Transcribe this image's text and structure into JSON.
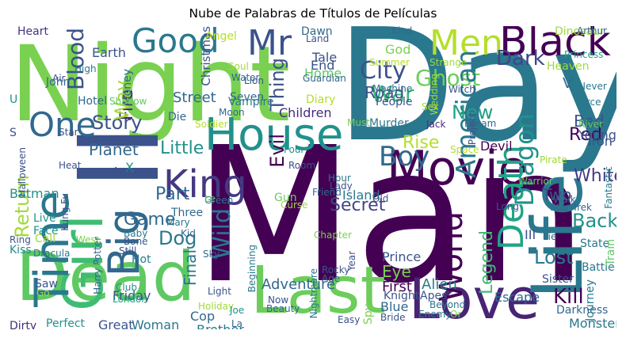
{
  "title": "Nube de Palabras de Títulos de Películas",
  "words": [
    {
      "text": "Man",
      "color": "#440154"
    },
    {
      "text": "Day",
      "color": "#2a788e"
    },
    {
      "text": "Night",
      "color": "#7ad151"
    },
    {
      "text": "II",
      "color": "#3b528b"
    },
    {
      "text": "Dead",
      "color": "#5ec962"
    },
    {
      "text": "Love",
      "color": "#482475"
    },
    {
      "text": "Last",
      "color": "#6ccd5a"
    },
    {
      "text": "Life",
      "color": "#2a788e"
    },
    {
      "text": "Movie",
      "color": "#440154"
    },
    {
      "text": "House",
      "color": "#21918c"
    },
    {
      "text": "Girl",
      "color": "#3fbc73"
    },
    {
      "text": "Black",
      "color": "#440154"
    },
    {
      "text": "Time",
      "color": "#2a788e"
    },
    {
      "text": "King",
      "color": "#443983"
    },
    {
      "text": "Big",
      "color": "#31688e"
    },
    {
      "text": "Good",
      "color": "#2a788e"
    },
    {
      "text": "Men",
      "color": "#b5de2b"
    },
    {
      "text": "Mr",
      "color": "#3b528b"
    },
    {
      "text": "Boy",
      "color": "#31688e"
    },
    {
      "text": "World",
      "color": "#440154"
    },
    {
      "text": "Death",
      "color": "#20a486"
    },
    {
      "text": "One",
      "color": "#31688e"
    },
    {
      "text": "City",
      "color": "#3b528b"
    },
    {
      "text": "Ghost",
      "color": "#6ccd5a"
    },
    {
      "text": "War",
      "color": "#35b779"
    },
    {
      "text": "American",
      "color": "#2a788e"
    },
    {
      "text": "Dragon",
      "color": "#21918c"
    },
    {
      "text": "Dark",
      "color": "#414487"
    },
    {
      "text": "Blood",
      "color": "#3b528b"
    },
    {
      "text": "Earth",
      "color": "#3b528b"
    },
    {
      "text": "Heart",
      "color": "#46327e"
    },
    {
      "text": "Christmas",
      "color": "#3b528b"
    },
    {
      "text": "Story",
      "color": "#3b528b"
    },
    {
      "text": "Little",
      "color": "#21918c"
    },
    {
      "text": "Planet",
      "color": "#31688e"
    },
    {
      "text": "Return",
      "color": "#a0da39"
    },
    {
      "text": "Fire",
      "color": "#481f70"
    },
    {
      "text": "Way",
      "color": "#a0da39"
    },
    {
      "text": "Secret",
      "color": "#414487"
    },
    {
      "text": "Wild",
      "color": "#2a788e"
    },
    {
      "text": "Part",
      "color": "#31688e"
    },
    {
      "text": "Game",
      "color": "#31688e"
    },
    {
      "text": "Dog",
      "color": "#2a788e"
    },
    {
      "text": "Thing",
      "color": "#3b528b"
    },
    {
      "text": "Street",
      "color": "#31688e"
    },
    {
      "text": "Evil",
      "color": "#440154"
    },
    {
      "text": "Kill",
      "color": "#440154"
    },
    {
      "text": "Lost",
      "color": "#2a788e"
    },
    {
      "text": "Back",
      "color": "#21918c"
    },
    {
      "text": "White",
      "color": "#443983"
    },
    {
      "text": "Red",
      "color": "#440154"
    },
    {
      "text": "Bad",
      "color": "#3b528b"
    },
    {
      "text": "New",
      "color": "#1fa187"
    },
    {
      "text": "Rise",
      "color": "#b5de2b"
    },
    {
      "text": "Road",
      "color": "#3b528b"
    },
    {
      "text": "Adventure",
      "color": "#31688e"
    },
    {
      "text": "Legend",
      "color": "#3fbc73"
    },
    {
      "text": "Friday",
      "color": "#3b528b"
    },
    {
      "text": "Final",
      "color": "#2a788e"
    },
    {
      "text": "Children",
      "color": "#472d7b"
    },
    {
      "text": "Murder",
      "color": "#2a788e"
    },
    {
      "text": "Escape",
      "color": "#31688e"
    },
    {
      "text": "Two",
      "color": "#3b528b"
    },
    {
      "text": "Prince",
      "color": "#3b528b"
    },
    {
      "text": "Eye",
      "color": "#7ad151"
    },
    {
      "text": "First",
      "color": "#440154"
    },
    {
      "text": "Alien",
      "color": "#2a788e"
    },
    {
      "text": "Blue",
      "color": "#31688e"
    },
    {
      "text": "Island",
      "color": "#2a788e"
    },
    {
      "text": "Tale",
      "color": "#3b528b"
    },
    {
      "text": "End",
      "color": "#3b528b"
    },
    {
      "text": "Home",
      "color": "#5ec962"
    },
    {
      "text": "God",
      "color": "#7ad151"
    },
    {
      "text": "People",
      "color": "#3b528b"
    },
    {
      "text": "Great",
      "color": "#3b528b"
    },
    {
      "text": "Woman",
      "color": "#2a788e"
    },
    {
      "text": "Cop",
      "color": "#31688e"
    },
    {
      "text": "Brother",
      "color": "#2a788e"
    },
    {
      "text": "Perfect",
      "color": "#21918c"
    },
    {
      "text": "Dirty",
      "color": "#472d7b"
    },
    {
      "text": "Monster",
      "color": "#2a788e"
    },
    {
      "text": "Darkness",
      "color": "#31688e"
    },
    {
      "text": "Journey",
      "color": "#2a788e"
    },
    {
      "text": "Battle",
      "color": "#2a788e"
    },
    {
      "text": "Sister",
      "color": "#3b528b"
    },
    {
      "text": "State",
      "color": "#2a788e"
    },
    {
      "text": "Train",
      "color": "#5ec962"
    },
    {
      "text": "Young",
      "color": "#3b528b"
    },
    {
      "text": "Iron",
      "color": "#3b528b"
    },
    {
      "text": "Force",
      "color": "#2a788e"
    },
    {
      "text": "Batman",
      "color": "#21918c"
    },
    {
      "text": "Live",
      "color": "#21918c"
    },
    {
      "text": "Face",
      "color": "#21918c"
    },
    {
      "text": "Call",
      "color": "#a0da39"
    },
    {
      "text": "Kiss",
      "color": "#21918c"
    },
    {
      "text": "Saw",
      "color": "#3b528b"
    },
    {
      "text": "Fantastic",
      "color": "#2a788e"
    },
    {
      "text": "Star Trek",
      "color": "#31688e"
    },
    {
      "text": "Walk",
      "color": "#31688e"
    },
    {
      "text": "Long",
      "color": "#3b528b"
    },
    {
      "text": "Warrior",
      "color": "#6ccd5a"
    },
    {
      "text": "Devil",
      "color": "#440154"
    },
    {
      "text": "Space",
      "color": "#b5de2b"
    },
    {
      "text": "Four",
      "color": "#21918c"
    },
    {
      "text": "Room",
      "color": "#3b528b"
    },
    {
      "text": "Gun",
      "color": "#6ccd5a"
    },
    {
      "text": "Three",
      "color": "#31688e"
    },
    {
      "text": "Green",
      "color": "#2a788e"
    },
    {
      "text": "Soldier",
      "color": "#b5de2b"
    },
    {
      "text": "Die",
      "color": "#31688e"
    },
    {
      "text": "Sea",
      "color": "#3b528b"
    },
    {
      "text": "Money",
      "color": "#31688e"
    },
    {
      "text": "Angel",
      "color": "#b5de2b"
    },
    {
      "text": "Soul",
      "color": "#a0da39"
    },
    {
      "text": "Water",
      "color": "#31688e"
    },
    {
      "text": "Lion",
      "color": "#3b528b"
    },
    {
      "text": "Seven",
      "color": "#31688e"
    },
    {
      "text": "Vampire",
      "color": "#2a788e"
    },
    {
      "text": "Moon",
      "color": "#31688e"
    },
    {
      "text": "Dawn",
      "color": "#31688e"
    },
    {
      "text": "Land",
      "color": "#3b528b"
    },
    {
      "text": "Kind",
      "color": "#31688e"
    },
    {
      "text": "Summer",
      "color": "#b5de2b"
    },
    {
      "text": "Strange",
      "color": "#a0da39"
    },
    {
      "text": "Machine",
      "color": "#31688e"
    },
    {
      "text": "Wedding",
      "color": "#a0da39"
    },
    {
      "text": "Witch",
      "color": "#3b528b"
    },
    {
      "text": "Guardian",
      "color": "#31688e"
    },
    {
      "text": "Diary",
      "color": "#b5de2b"
    },
    {
      "text": "Sex",
      "color": "#b5de2b"
    },
    {
      "text": "Must",
      "color": "#7ad151"
    },
    {
      "text": "Jack",
      "color": "#472d7b"
    },
    {
      "text": "Dream",
      "color": "#31688e"
    },
    {
      "text": "Project",
      "color": "#3b528b"
    },
    {
      "text": "Dinosaur",
      "color": "#a0da39"
    },
    {
      "text": "Arthur",
      "color": "#31688e"
    },
    {
      "text": "Princess",
      "color": "#1fa187"
    },
    {
      "text": "Heaven",
      "color": "#a0da39"
    },
    {
      "text": "Never",
      "color": "#2a788e"
    },
    {
      "text": "River",
      "color": "#5ec962"
    },
    {
      "text": "Pirate",
      "color": "#a0da39"
    },
    {
      "text": "Lie",
      "color": "#31688e"
    },
    {
      "text": "Air",
      "color": "#3b528b"
    },
    {
      "text": "V",
      "color": "#31688e"
    },
    {
      "text": "S",
      "color": "#3b528b"
    },
    {
      "text": "X",
      "color": "#21918c"
    },
    {
      "text": "U",
      "color": "#21918c"
    },
    {
      "text": "John",
      "color": "#31688e"
    },
    {
      "text": "High",
      "color": "#2a788e"
    },
    {
      "text": "Hotel",
      "color": "#31688e"
    },
    {
      "text": "Shadow",
      "color": "#5ec962"
    },
    {
      "text": "Star",
      "color": "#3b528b"
    },
    {
      "text": "Heat",
      "color": "#3b528b"
    },
    {
      "text": "Halloween",
      "color": "#3b528b"
    },
    {
      "text": "Kung Fu",
      "color": "#3b528b"
    },
    {
      "text": "Avenger",
      "color": "#3b528b"
    },
    {
      "text": "Ring",
      "color": "#3b528b"
    },
    {
      "text": "West",
      "color": "#7ad151"
    },
    {
      "text": "Dracula",
      "color": "#2a788e"
    },
    {
      "text": "Harry Potter",
      "color": "#31688e"
    },
    {
      "text": "Baby",
      "color": "#2a788e"
    },
    {
      "text": "Bone",
      "color": "#3b528b"
    },
    {
      "text": "Still",
      "color": "#3b528b"
    },
    {
      "text": "Hot",
      "color": "#2a788e"
    },
    {
      "text": "Kid",
      "color": "#31688e"
    },
    {
      "text": "Mary",
      "color": "#2a788e"
    },
    {
      "text": "Sky",
      "color": "#31688e"
    },
    {
      "text": "Le",
      "color": "#5ec962"
    },
    {
      "text": "Club",
      "color": "#21918c"
    },
    {
      "text": "London",
      "color": "#1fa187"
    },
    {
      "text": "Light",
      "color": "#3b528b"
    },
    {
      "text": "Go",
      "color": "#a0da39"
    },
    {
      "text": "Holiday",
      "color": "#a0da39"
    },
    {
      "text": "Joe",
      "color": "#21918c"
    },
    {
      "text": "La",
      "color": "#31688e"
    },
    {
      "text": "Beginning",
      "color": "#2a788e"
    },
    {
      "text": "Nightmare",
      "color": "#2a788e"
    },
    {
      "text": "Now",
      "color": "#3b528b"
    },
    {
      "text": "Beauty",
      "color": "#31688e"
    },
    {
      "text": "Age",
      "color": "#31688e"
    },
    {
      "text": "Rocky",
      "color": "#3b528b"
    },
    {
      "text": "Chapter",
      "color": "#7ad151"
    },
    {
      "text": "Hour",
      "color": "#2a788e"
    },
    {
      "text": "Lady",
      "color": "#3b528b"
    },
    {
      "text": "Friend",
      "color": "#31688e"
    },
    {
      "text": "Curse",
      "color": "#a0da39"
    },
    {
      "text": "Old",
      "color": "#3b528b"
    },
    {
      "text": "Year",
      "color": "#3b528b"
    },
    {
      "text": "Spy",
      "color": "#7ad151"
    },
    {
      "text": "Easy",
      "color": "#3b528b"
    },
    {
      "text": "Knight",
      "color": "#3b528b"
    },
    {
      "text": "Apes",
      "color": "#3b528b"
    },
    {
      "text": "Beyond",
      "color": "#2a788e"
    },
    {
      "text": "Bride",
      "color": "#3b528b"
    },
    {
      "text": "Enemy",
      "color": "#2a788e"
    },
    {
      "text": "Or",
      "color": "#7ad151"
    },
    {
      "text": "III",
      "color": "#3b528b"
    }
  ]
}
